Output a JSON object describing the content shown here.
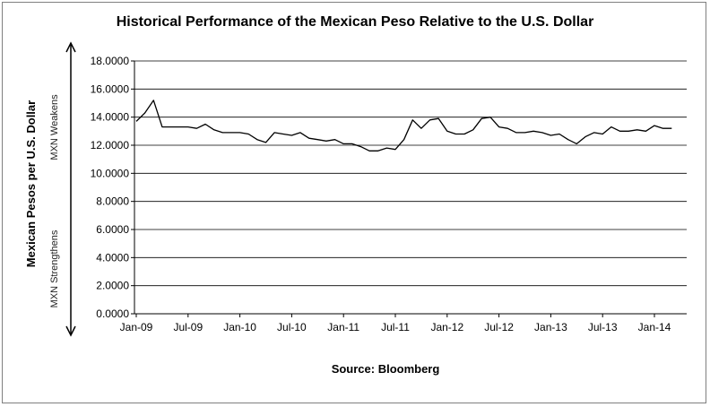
{
  "chart_data": {
    "type": "line",
    "title": "Historical Performance of the Mexican Peso Relative to the U.S. Dollar",
    "ylabel": "Mexican Pesos per U.S. Dollar",
    "xlabel": "",
    "source": "Source: Bloomberg",
    "annotations": {
      "upper": "MXN Weakens",
      "lower": "MXN Strengthens"
    },
    "ylim": [
      0,
      18
    ],
    "y_ticks": [
      "0.0000",
      "2.0000",
      "4.0000",
      "6.0000",
      "8.0000",
      "10.0000",
      "12.0000",
      "14.0000",
      "16.0000",
      "18.0000"
    ],
    "x_ticks": [
      "Jan-09",
      "Jul-09",
      "Jan-10",
      "Jul-10",
      "Jan-11",
      "Jul-11",
      "Jan-12",
      "Jul-12",
      "Jan-13",
      "Jul-13",
      "Jan-14"
    ],
    "grid": "horizontal",
    "line_color": "#000000",
    "series": [
      {
        "x": [
          "2009-01",
          "2009-02",
          "2009-03",
          "2009-04",
          "2009-05",
          "2009-06",
          "2009-07",
          "2009-08",
          "2009-09",
          "2009-10",
          "2009-11",
          "2009-12",
          "2010-01",
          "2010-02",
          "2010-03",
          "2010-04",
          "2010-05",
          "2010-06",
          "2010-07",
          "2010-08",
          "2010-09",
          "2010-10",
          "2010-11",
          "2010-12",
          "2011-01",
          "2011-02",
          "2011-03",
          "2011-04",
          "2011-05",
          "2011-06",
          "2011-07",
          "2011-08",
          "2011-09",
          "2011-10",
          "2011-11",
          "2011-12",
          "2012-01",
          "2012-02",
          "2012-03",
          "2012-04",
          "2012-05",
          "2012-06",
          "2012-07",
          "2012-08",
          "2012-09",
          "2012-10",
          "2012-11",
          "2012-12",
          "2013-01",
          "2013-02",
          "2013-03",
          "2013-04",
          "2013-05",
          "2013-06",
          "2013-07",
          "2013-08",
          "2013-09",
          "2013-10",
          "2013-11",
          "2013-12",
          "2014-01",
          "2014-02",
          "2014-03"
        ],
        "values": [
          13.7,
          14.3,
          15.2,
          13.3,
          13.3,
          13.3,
          13.3,
          13.2,
          13.5,
          13.1,
          12.9,
          12.9,
          12.9,
          12.8,
          12.4,
          12.2,
          12.9,
          12.8,
          12.7,
          12.9,
          12.5,
          12.4,
          12.3,
          12.4,
          12.1,
          12.1,
          11.9,
          11.6,
          11.6,
          11.8,
          11.7,
          12.4,
          13.8,
          13.2,
          13.8,
          13.9,
          13.0,
          12.8,
          12.8,
          13.1,
          13.9,
          14.0,
          13.3,
          13.2,
          12.9,
          12.9,
          13.0,
          12.9,
          12.7,
          12.8,
          12.4,
          12.1,
          12.6,
          12.9,
          12.8,
          13.3,
          13.0,
          13.0,
          13.1,
          13.0,
          13.4,
          13.2,
          13.2
        ]
      }
    ]
  }
}
